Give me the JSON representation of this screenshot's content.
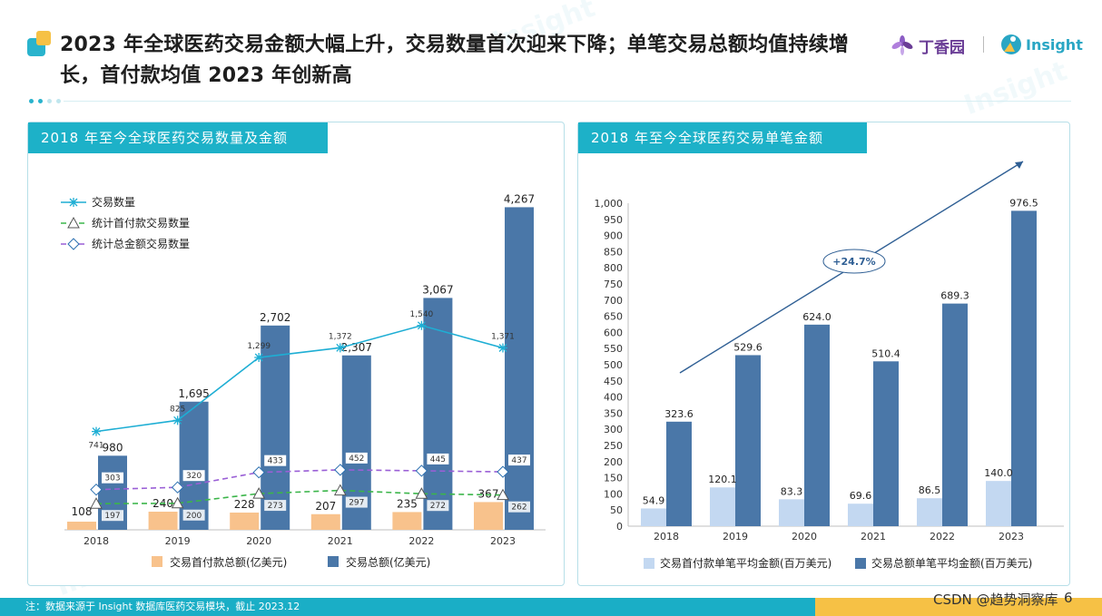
{
  "title": "2023 年全球医药交易金额大幅上升，交易数量首次迎来下降；单笔交易总额均值持续增长，首付款均值 2023 年创新高",
  "brand": {
    "dxy": "丁香园",
    "insight": "Insight"
  },
  "footer": {
    "note": "注：数据来源于 Insight 数据库医药交易模块，截止 2023.12"
  },
  "watermark": {
    "csdn": "CSDN @趋势洞察库",
    "page": "6"
  },
  "colors": {
    "accent": "#1db1c8",
    "dark_bar": "#4a77a8",
    "orange_bar": "#f8c28c",
    "light_bar": "#c3d8f1",
    "line1": "#1eaed4",
    "line2": "#3bb54a",
    "line3": "#9a5fd6"
  },
  "chart_data": [
    {
      "type": "bar",
      "title": "2018 年至今全球医药交易数量及金额",
      "categories": [
        "2018",
        "2019",
        "2020",
        "2021",
        "2022",
        "2023"
      ],
      "series": [
        {
          "name": "交易首付款总额(亿美元)",
          "kind": "bar",
          "values": [
            108,
            240,
            228,
            207,
            235,
            367
          ],
          "labels": [
            "108",
            "240",
            "228",
            "207",
            "235",
            "367"
          ]
        },
        {
          "name": "交易总额(亿美元)",
          "kind": "bar",
          "values": [
            980,
            1695,
            2702,
            2307,
            3067,
            4267
          ],
          "labels": [
            "980",
            "1,695",
            "2,702",
            "2,307",
            "3,067",
            "4,267"
          ]
        },
        {
          "name": "交易数量",
          "kind": "line",
          "values": [
            741,
            825,
            1299,
            1372,
            1540,
            1371
          ],
          "labels": [
            "741",
            "825",
            "1,299",
            "1,372",
            "1,540",
            "1,371"
          ]
        },
        {
          "name": "统计首付款交易数量",
          "kind": "line",
          "values": [
            197,
            200,
            273,
            297,
            272,
            262
          ],
          "labels": [
            "197",
            "200",
            "273",
            "297",
            "272",
            "262"
          ]
        },
        {
          "name": "统计总金额交易数量",
          "kind": "line",
          "values": [
            303,
            320,
            433,
            452,
            445,
            437
          ],
          "labels": [
            "303",
            "320",
            "433",
            "452",
            "445",
            "437"
          ]
        }
      ],
      "ylim": [
        0,
        4500
      ],
      "ylim_line": [
        0,
        2000
      ]
    },
    {
      "type": "bar",
      "title": "2018 年至今全球医药交易单笔金额",
      "categories": [
        "2018",
        "2019",
        "2020",
        "2021",
        "2022",
        "2023"
      ],
      "series": [
        {
          "name": "交易首付款单笔平均金额(百万美元)",
          "values": [
            54.9,
            120.1,
            83.3,
            69.6,
            86.5,
            140.0
          ],
          "labels": [
            "54.9",
            "120.1",
            "83.3",
            "69.6",
            "86.5",
            "140.0"
          ]
        },
        {
          "name": "交易总额单笔平均金额(百万美元)",
          "values": [
            323.6,
            529.6,
            624.0,
            510.4,
            689.3,
            976.5
          ],
          "labels": [
            "323.6",
            "529.6",
            "624.0",
            "510.4",
            "689.3",
            "976.5"
          ]
        }
      ],
      "ylim": [
        0,
        1000
      ],
      "yticks": [
        "0",
        "50",
        "100",
        "150",
        "200",
        "250",
        "300",
        "350",
        "400",
        "450",
        "500",
        "550",
        "600",
        "650",
        "700",
        "750",
        "800",
        "850",
        "900",
        "950",
        "1,000"
      ],
      "annotation": "+24.7%"
    }
  ]
}
